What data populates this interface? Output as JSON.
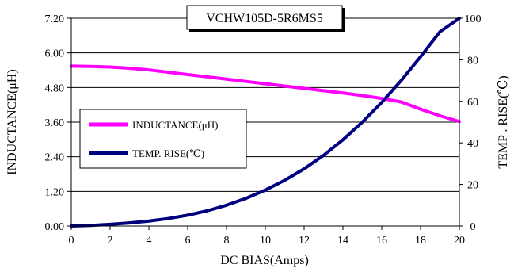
{
  "chart_data": {
    "type": "line",
    "title": "VCHW105D-5R6MS5",
    "xlabel": "DC BIAS(Amps)",
    "ylabel_left": "INDUCTANCE(μH)",
    "ylabel_right": "TEMP . RISE(℃)",
    "xlim": [
      0,
      20
    ],
    "ylim_left": [
      0,
      7.2
    ],
    "ylim_right": [
      0,
      100
    ],
    "x_ticks": [
      "0",
      "2",
      "4",
      "6",
      "8",
      "10",
      "12",
      "14",
      "16",
      "18",
      "20"
    ],
    "y_left_ticks": [
      "0.00",
      "1.20",
      "2.40",
      "3.60",
      "4.80",
      "6.00",
      "7.20"
    ],
    "y_right_ticks": [
      "0",
      "20",
      "40",
      "60",
      "80",
      "100"
    ],
    "grid": "horizontal",
    "legend_position": "left-middle",
    "series": [
      {
        "name": "INDUCTANCE(μH)",
        "axis": "left",
        "color": "#ff00ff",
        "x": [
          0,
          1,
          2,
          3,
          4,
          5,
          6,
          7,
          8,
          9,
          10,
          11,
          12,
          13,
          14,
          15,
          16,
          17,
          18,
          19,
          20
        ],
        "y": [
          5.54,
          5.53,
          5.51,
          5.47,
          5.41,
          5.33,
          5.25,
          5.17,
          5.09,
          5.01,
          4.93,
          4.85,
          4.77,
          4.69,
          4.61,
          4.52,
          4.42,
          4.3,
          4.05,
          3.82,
          3.62
        ]
      },
      {
        "name": "TEMP. RISE(℃)",
        "axis": "right",
        "color": "#000080",
        "x": [
          0,
          1,
          2,
          3,
          4,
          5,
          6,
          7,
          8,
          9,
          10,
          11,
          12,
          13,
          14,
          15,
          16,
          17,
          18,
          19,
          20
        ],
        "y": [
          0,
          0.3,
          0.8,
          1.5,
          2.4,
          3.6,
          5.2,
          7.3,
          10,
          13.3,
          17.3,
          22,
          27.5,
          34,
          41.5,
          50,
          59.5,
          70,
          81.5,
          93.5,
          100
        ]
      }
    ]
  }
}
